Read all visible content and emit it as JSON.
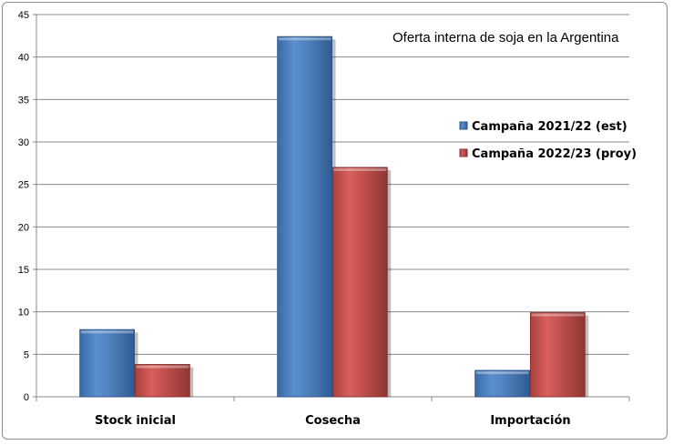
{
  "chart_data": {
    "type": "bar",
    "title": "Oferta interna de soja en la Argentina",
    "xlabel": "",
    "ylabel": "",
    "categories": [
      "Stock inicial",
      "Cosecha",
      "Importación"
    ],
    "series": [
      {
        "name": "Campaña 2021/22 (est)",
        "values": [
          7.9,
          42.4,
          3.1
        ],
        "color": "#4f81bd"
      },
      {
        "name": "Campaña 2022/23 (proy)",
        "values": [
          3.8,
          27.0,
          9.9
        ],
        "color": "#c0504d"
      }
    ],
    "ylim": [
      0,
      45
    ],
    "yticks": [
      0,
      5,
      10,
      15,
      20,
      25,
      30,
      35,
      40,
      45
    ],
    "grid": true,
    "legend_position": "right"
  }
}
